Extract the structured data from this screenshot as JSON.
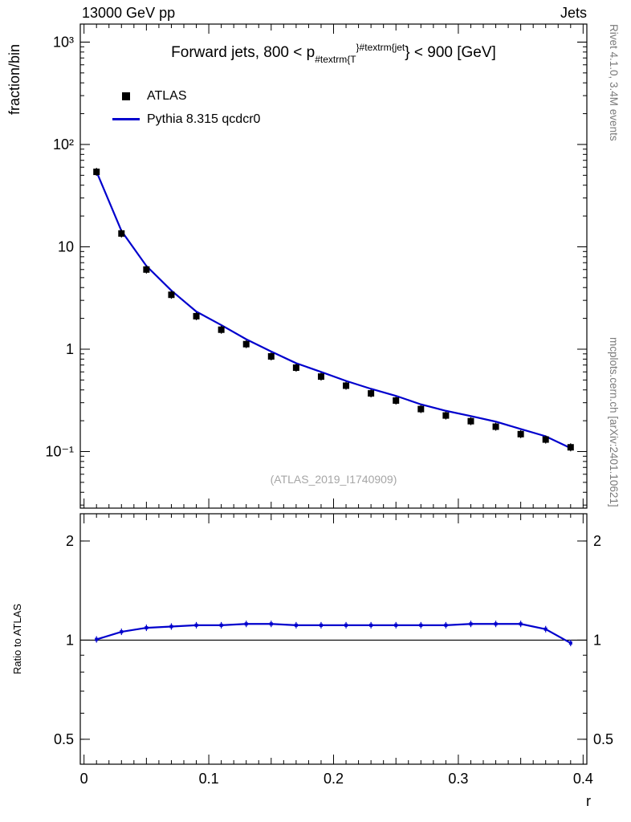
{
  "header": {
    "left": "13000 GeV pp",
    "right": "Jets"
  },
  "title": {
    "prefix": "Forward jets, 800 < p",
    "sub": "#textrm{T",
    "sup": "}#textrm{jet",
    "suffix": "} < 900 [GeV]"
  },
  "legend": {
    "items": [
      {
        "label": "ATLAS",
        "marker": "black-square",
        "color": "#000000"
      },
      {
        "label": "Pythia 8.315 qcdcr0",
        "marker": "line",
        "color": "#0000cd"
      }
    ]
  },
  "axes": {
    "x_label": "r",
    "main_y_label": "fraction/bin",
    "ratio_y_label": "Ratio to ATLAS"
  },
  "watermark": "(ATLAS_2019_I1740909)",
  "side_notes": {
    "top": "Rivet 4.1.0, 3.4M events",
    "bottom": "mcplots.cern.ch [arXiv:2401.10621]"
  },
  "chart_data": [
    {
      "type": "scatter",
      "panel": "main",
      "title": "Forward jets, 800 < p_{#textrm{T}}^{#textrm{jet}} < 900 [GeV]",
      "xlabel": "r",
      "ylabel": "fraction/bin",
      "yscale": "log",
      "xlim": [
        -0.003,
        0.403
      ],
      "ylim": [
        0.028,
        1500
      ],
      "legend_position": "top-left",
      "x": [
        0.01,
        0.03,
        0.05,
        0.07,
        0.09,
        0.11,
        0.13,
        0.15,
        0.17,
        0.19,
        0.21,
        0.23,
        0.25,
        0.27,
        0.29,
        0.31,
        0.33,
        0.35,
        0.37,
        0.39
      ],
      "series": [
        {
          "name": "ATLAS",
          "type": "marker",
          "color": "#000000",
          "values": [
            54,
            13.5,
            6.0,
            3.4,
            2.1,
            1.55,
            1.12,
            0.85,
            0.66,
            0.54,
            0.44,
            0.37,
            0.315,
            0.26,
            0.225,
            0.198,
            0.175,
            0.148,
            0.131,
            0.11
          ]
        },
        {
          "name": "Pythia 8.315 qcdcr0",
          "type": "line",
          "color": "#0000cd",
          "values": [
            54.3,
            14.3,
            6.5,
            3.74,
            2.33,
            1.72,
            1.25,
            0.95,
            0.73,
            0.6,
            0.49,
            0.41,
            0.35,
            0.289,
            0.25,
            0.222,
            0.196,
            0.166,
            0.141,
            0.108
          ]
        }
      ],
      "y_major_ticks": [
        {
          "value": 1000,
          "label": "10³"
        },
        {
          "value": 100,
          "label": "10²"
        },
        {
          "value": 10,
          "label": "10"
        },
        {
          "value": 1,
          "label": "1"
        },
        {
          "value": 0.1,
          "label": "10⁻¹"
        }
      ],
      "right_labels": false,
      "watermark": "(ATLAS_2019_I1740909)"
    },
    {
      "type": "line",
      "panel": "ratio",
      "ylabel": "Ratio to ATLAS",
      "yscale": "log",
      "xlim": [
        -0.003,
        0.403
      ],
      "ylim": [
        0.42,
        2.42
      ],
      "reference_line": 1,
      "x": [
        0.01,
        0.03,
        0.05,
        0.07,
        0.09,
        0.11,
        0.13,
        0.15,
        0.17,
        0.19,
        0.21,
        0.23,
        0.25,
        0.27,
        0.29,
        0.31,
        0.33,
        0.35,
        0.37,
        0.39
      ],
      "series": [
        {
          "name": "Pythia 8.315 qcdcr0 / ATLAS",
          "type": "line+marker",
          "color": "#0000cd",
          "values": [
            1.005,
            1.06,
            1.09,
            1.1,
            1.11,
            1.11,
            1.12,
            1.12,
            1.11,
            1.11,
            1.11,
            1.11,
            1.11,
            1.11,
            1.11,
            1.12,
            1.12,
            1.12,
            1.08,
            0.98
          ]
        }
      ],
      "y_major_ticks": [
        {
          "value": 2,
          "label": "2"
        },
        {
          "value": 1,
          "label": "1"
        },
        {
          "value": 0.5,
          "label": "0.5"
        }
      ],
      "right_labels": true,
      "x_major_ticks": [
        {
          "value": 0,
          "label": "0"
        },
        {
          "value": 0.1,
          "label": "0.1"
        },
        {
          "value": 0.2,
          "label": "0.2"
        },
        {
          "value": 0.3,
          "label": "0.3"
        },
        {
          "value": 0.4,
          "label": "0.4"
        }
      ],
      "xlabel": "r"
    }
  ]
}
